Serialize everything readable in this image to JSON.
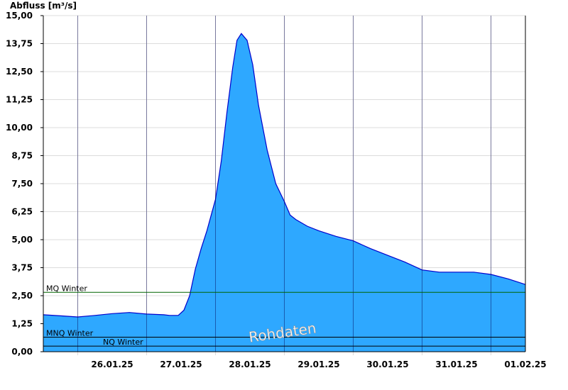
{
  "chart_data": {
    "type": "area",
    "ylabel": "Abfluss [m³/s]",
    "xlabel": "",
    "ylim": [
      0,
      15
    ],
    "yticks": [
      "0,00",
      "1,25",
      "2,50",
      "3,75",
      "5,00",
      "6,25",
      "7,50",
      "8,75",
      "10,00",
      "11,25",
      "12,50",
      "13,75",
      "15,00"
    ],
    "xlim_days": [
      "25.01.25 12:00",
      "01.02.25 12:00"
    ],
    "xticks": [
      "26.01.25",
      "27.01.25",
      "28.01.25",
      "29.01.25",
      "30.01.25",
      "31.01.25",
      "01.02.25"
    ],
    "grid": true,
    "fill_color": "#2ea8ff",
    "line_color": "#0000cc",
    "series": [
      {
        "values": [
          [
            "25.01.25 12:00",
            1.65
          ],
          [
            "25.01.25 18:00",
            1.6
          ],
          [
            "26.01.25 00:00",
            1.55
          ],
          [
            "26.01.25 06:00",
            1.62
          ],
          [
            "26.01.25 12:00",
            1.7
          ],
          [
            "26.01.25 18:00",
            1.75
          ],
          [
            "27.01.25 00:00",
            1.68
          ],
          [
            "27.01.25 06:00",
            1.65
          ],
          [
            "27.01.25 08:00",
            1.62
          ],
          [
            "27.01.25 11:00",
            1.62
          ],
          [
            "27.01.25 13:00",
            1.85
          ],
          [
            "27.01.25 15:00",
            2.5
          ],
          [
            "27.01.25 17:00",
            3.7
          ],
          [
            "27.01.25 19:00",
            4.6
          ],
          [
            "27.01.25 21:00",
            5.4
          ],
          [
            "28.01.25 00:00",
            6.8
          ],
          [
            "28.01.25 02:00",
            8.5
          ],
          [
            "28.01.25 04:00",
            10.7
          ],
          [
            "28.01.25 06:00",
            12.7
          ],
          [
            "28.01.25 07:30",
            13.9
          ],
          [
            "28.01.25 09:00",
            14.2
          ],
          [
            "28.01.25 11:00",
            13.9
          ],
          [
            "28.01.25 13:00",
            12.8
          ],
          [
            "28.01.25 15:00",
            11.0
          ],
          [
            "28.01.25 18:00",
            9.0
          ],
          [
            "28.01.25 21:00",
            7.5
          ],
          [
            "29.01.25 00:00",
            6.7
          ],
          [
            "29.01.25 02:00",
            6.1
          ],
          [
            "29.01.25 04:00",
            5.9
          ],
          [
            "29.01.25 08:00",
            5.6
          ],
          [
            "29.01.25 12:00",
            5.4
          ],
          [
            "29.01.25 18:00",
            5.15
          ],
          [
            "30.01.25 00:00",
            4.95
          ],
          [
            "30.01.25 06:00",
            4.6
          ],
          [
            "30.01.25 12:00",
            4.3
          ],
          [
            "30.01.25 18:00",
            4.0
          ],
          [
            "31.01.25 00:00",
            3.65
          ],
          [
            "31.01.25 06:00",
            3.55
          ],
          [
            "31.01.25 12:00",
            3.55
          ],
          [
            "31.01.25 18:00",
            3.55
          ],
          [
            "01.02.25 00:00",
            3.45
          ],
          [
            "01.02.25 06:00",
            3.25
          ],
          [
            "01.02.25 12:00",
            3.0
          ]
        ]
      }
    ],
    "reference_lines": [
      {
        "label": "MQ Winter",
        "value": 2.65,
        "color": "#006400"
      },
      {
        "label": "MNQ Winter",
        "value": 0.65,
        "color": "#000000"
      },
      {
        "label": "NQ Winter",
        "value": 0.25,
        "color": "#000000"
      }
    ],
    "watermark": "Rohdaten"
  }
}
